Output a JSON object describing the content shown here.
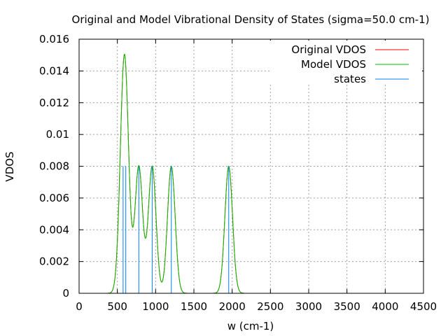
{
  "chart_data": {
    "type": "line",
    "title": "Original and Model Vibrational Density of States (sigma=50.0 cm-1)",
    "xlabel": "w (cm-1)",
    "ylabel": "VDOS",
    "xlim": [
      0,
      4500
    ],
    "ylim": [
      0,
      0.016
    ],
    "xticks": [
      "0",
      "500",
      "1000",
      "1500",
      "2000",
      "2500",
      "3000",
      "3500",
      "4000",
      "4500"
    ],
    "yticks": [
      "0",
      "0.002",
      "0.004",
      "0.006",
      "0.008",
      "0.01",
      "0.012",
      "0.014",
      "0.016"
    ],
    "grid": true,
    "legend_position": "top-right",
    "sigma": 50.0,
    "states": {
      "x": [
        575,
        610,
        780,
        955,
        1205,
        1955
      ],
      "height": 0.008
    },
    "series": [
      {
        "name": "Original VDOS",
        "color": "#ff0000"
      },
      {
        "name": "Model VDOS",
        "color": "#00c000"
      },
      {
        "name": "states",
        "color": "#0080ff"
      }
    ]
  }
}
